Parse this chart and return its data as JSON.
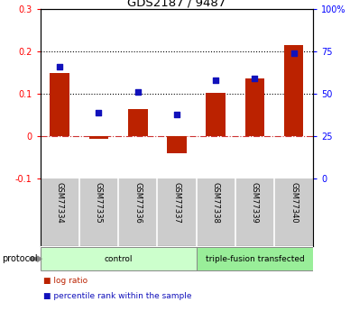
{
  "title": "GDS2187 / 9487",
  "samples": [
    "GSM77334",
    "GSM77335",
    "GSM77336",
    "GSM77337",
    "GSM77338",
    "GSM77339",
    "GSM77340"
  ],
  "log_ratio": [
    0.15,
    -0.005,
    0.065,
    -0.04,
    0.102,
    0.138,
    0.215
  ],
  "percentile_rank": [
    66,
    39,
    51,
    38,
    58,
    59,
    74
  ],
  "bar_color": "#bb2200",
  "dot_color": "#1111bb",
  "ylim_left": [
    -0.1,
    0.3
  ],
  "ylim_right": [
    0,
    100
  ],
  "yticks_left": [
    -0.1,
    0.0,
    0.1,
    0.2,
    0.3
  ],
  "yticks_right": [
    0,
    25,
    50,
    75,
    100
  ],
  "ytick_labels_left": [
    "-0.1",
    "0",
    "0.1",
    "0.2",
    "0.3"
  ],
  "ytick_labels_right": [
    "0",
    "25",
    "50",
    "75",
    "100%"
  ],
  "hlines": [
    0.1,
    0.2
  ],
  "zero_line_y": 0.0,
  "groups": [
    {
      "label": "control",
      "start": 0,
      "end": 4,
      "color": "#ccffcc"
    },
    {
      "label": "triple-fusion transfected",
      "start": 4,
      "end": 7,
      "color": "#99ee99"
    }
  ],
  "protocol_label": "protocol",
  "legend_items": [
    {
      "color": "#bb2200",
      "label": "log ratio"
    },
    {
      "color": "#1111bb",
      "label": "percentile rank within the sample"
    }
  ],
  "background_color": "#ffffff",
  "plot_bg_color": "#ffffff",
  "box_bg_color": "#cccccc"
}
